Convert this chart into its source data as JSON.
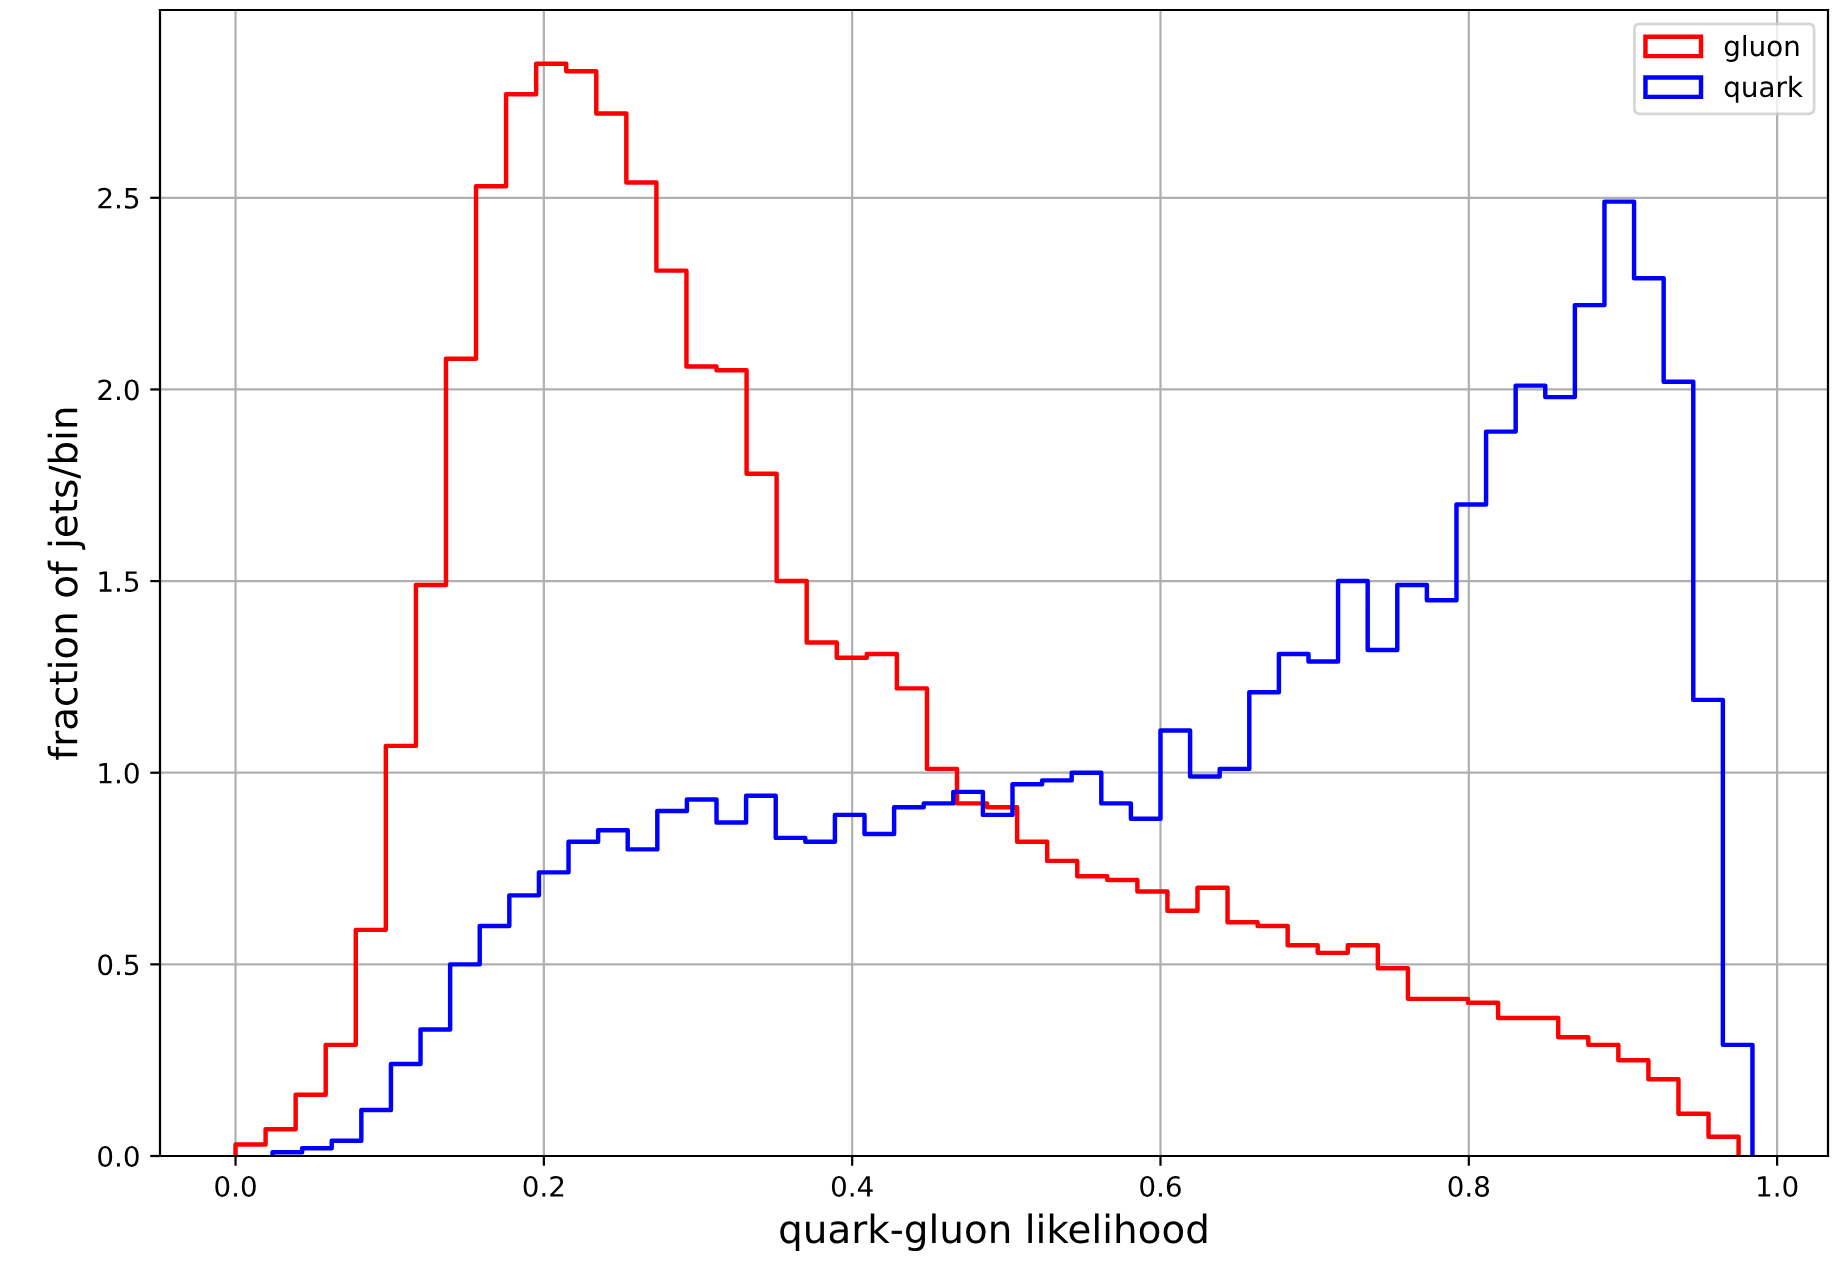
{
  "chart_data": {
    "type": "step",
    "xlabel": "quark-gluon likelihood",
    "ylabel": "fraction of jets/bin",
    "xlim": [
      -0.049,
      1.033
    ],
    "ylim": [
      0,
      2.99
    ],
    "xticks": [
      {
        "value": 0,
        "label": "0.0"
      },
      {
        "value": 0.2,
        "label": "0.2"
      },
      {
        "value": 0.4,
        "label": "0.4"
      },
      {
        "value": 0.6,
        "label": "0.6"
      },
      {
        "value": 0.8,
        "label": "0.8"
      },
      {
        "value": 1,
        "label": "1.0"
      }
    ],
    "yticks": [
      {
        "value": 0,
        "label": "0.0"
      },
      {
        "value": 0.5,
        "label": "0.5"
      },
      {
        "value": 1,
        "label": "1.0"
      },
      {
        "value": 1.5,
        "label": "1.5"
      },
      {
        "value": 2,
        "label": "2.0"
      },
      {
        "value": 2.5,
        "label": "2.5"
      }
    ],
    "grid": true,
    "legend": "top right",
    "series": [
      {
        "name": "gluon",
        "color": "#ff0000",
        "x": [
          0,
          0,
          0.0195,
          0.039,
          0.0585,
          0.078,
          0.0975,
          0.117,
          0.1365,
          0.156,
          0.1755,
          0.195,
          0.2145,
          0.234,
          0.2535,
          0.273,
          0.2925,
          0.312,
          0.3315,
          0.351,
          0.3705,
          0.39,
          0.4095,
          0.429,
          0.4485,
          0.468,
          0.4875,
          0.507,
          0.5265,
          0.546,
          0.5655,
          0.585,
          0.6045,
          0.624,
          0.6435,
          0.663,
          0.6825,
          0.702,
          0.7215,
          0.741,
          0.7605,
          0.78,
          0.7995,
          0.819,
          0.8385,
          0.858,
          0.8775,
          0.897,
          0.9165,
          0.936,
          0.9555,
          0.975
        ],
        "values": [
          0,
          0.03,
          0.07,
          0.16,
          0.29,
          0.59,
          1.07,
          1.49,
          2.08,
          2.53,
          2.77,
          2.85,
          2.83,
          2.72,
          2.54,
          2.31,
          2.06,
          2.05,
          1.78,
          1.5,
          1.34,
          1.3,
          1.31,
          1.22,
          1.01,
          0.92,
          0.91,
          0.82,
          0.77,
          0.73,
          0.72,
          0.69,
          0.64,
          0.7,
          0.61,
          0.6,
          0.55,
          0.53,
          0.55,
          0.49,
          0.41,
          0.41,
          0.4,
          0.36,
          0.36,
          0.31,
          0.29,
          0.25,
          0.2,
          0.11,
          0.05,
          0
        ]
      },
      {
        "name": "quark",
        "color": "#0000ff",
        "x": [
          0.024,
          0.024,
          0.0432,
          0.0624,
          0.0816,
          0.1008,
          0.12,
          0.1392,
          0.1584,
          0.1776,
          0.1968,
          0.216,
          0.2352,
          0.2544,
          0.2736,
          0.2928,
          0.312,
          0.3312,
          0.3504,
          0.3696,
          0.3888,
          0.408,
          0.4272,
          0.4464,
          0.4656,
          0.4848,
          0.504,
          0.5232,
          0.5424,
          0.5616,
          0.5808,
          0.6,
          0.6192,
          0.6384,
          0.6576,
          0.6768,
          0.696,
          0.7152,
          0.7344,
          0.7536,
          0.7728,
          0.792,
          0.8112,
          0.8304,
          0.8496,
          0.8688,
          0.888,
          0.9072,
          0.9264,
          0.9456,
          0.9648,
          0.984
        ],
        "values": [
          0,
          0.01,
          0.02,
          0.04,
          0.12,
          0.24,
          0.33,
          0.5,
          0.6,
          0.68,
          0.74,
          0.82,
          0.85,
          0.8,
          0.9,
          0.93,
          0.87,
          0.94,
          0.83,
          0.82,
          0.89,
          0.84,
          0.91,
          0.92,
          0.95,
          0.89,
          0.97,
          0.98,
          1.0,
          0.92,
          0.88,
          1.11,
          0.99,
          1.01,
          1.21,
          1.31,
          1.29,
          1.5,
          1.32,
          1.49,
          1.45,
          1.7,
          1.89,
          2.01,
          1.98,
          2.22,
          2.49,
          2.29,
          2.02,
          1.19,
          0.29,
          0
        ]
      }
    ]
  }
}
